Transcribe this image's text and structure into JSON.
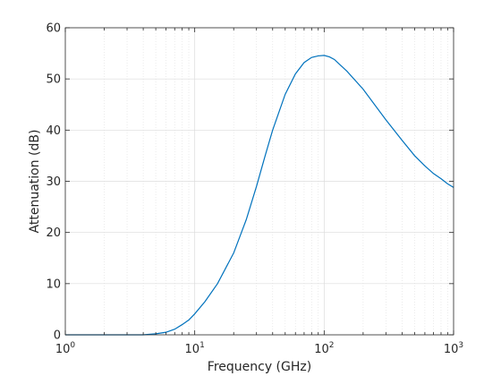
{
  "chart_data": {
    "type": "line",
    "title": "",
    "xlabel": "Frequency (GHz)",
    "ylabel": "Attenuation (dB)",
    "x_scale": "log",
    "xlim": [
      1,
      1000
    ],
    "ylim": [
      0,
      60
    ],
    "grid": true,
    "x_ticks": [
      {
        "base": "10",
        "exp": "0",
        "value": 1
      },
      {
        "base": "10",
        "exp": "1",
        "value": 10
      },
      {
        "base": "10",
        "exp": "2",
        "value": 100
      },
      {
        "base": "10",
        "exp": "3",
        "value": 1000
      }
    ],
    "y_ticks": [
      "0",
      "10",
      "20",
      "30",
      "40",
      "50",
      "60"
    ],
    "line_color": "#0072bd",
    "series": [
      {
        "x": [
          1,
          2,
          3,
          4,
          5,
          6,
          7,
          8,
          9,
          10,
          12,
          15,
          20,
          25,
          30,
          35,
          40,
          50,
          60,
          70,
          80,
          90,
          100,
          110,
          120,
          150,
          200,
          300,
          400,
          500,
          600,
          700,
          800,
          900,
          1000
        ],
        "values": [
          0,
          0,
          0,
          0,
          0.2,
          0.5,
          1.1,
          2.0,
          2.9,
          4.1,
          6.5,
          10.0,
          16.0,
          22.5,
          29.0,
          35.0,
          40.0,
          47.0,
          51.0,
          53.2,
          54.2,
          54.5,
          54.6,
          54.3,
          53.8,
          51.5,
          48.0,
          42.0,
          38.0,
          35.0,
          33.0,
          31.5,
          30.5,
          29.5,
          28.8
        ]
      }
    ]
  }
}
